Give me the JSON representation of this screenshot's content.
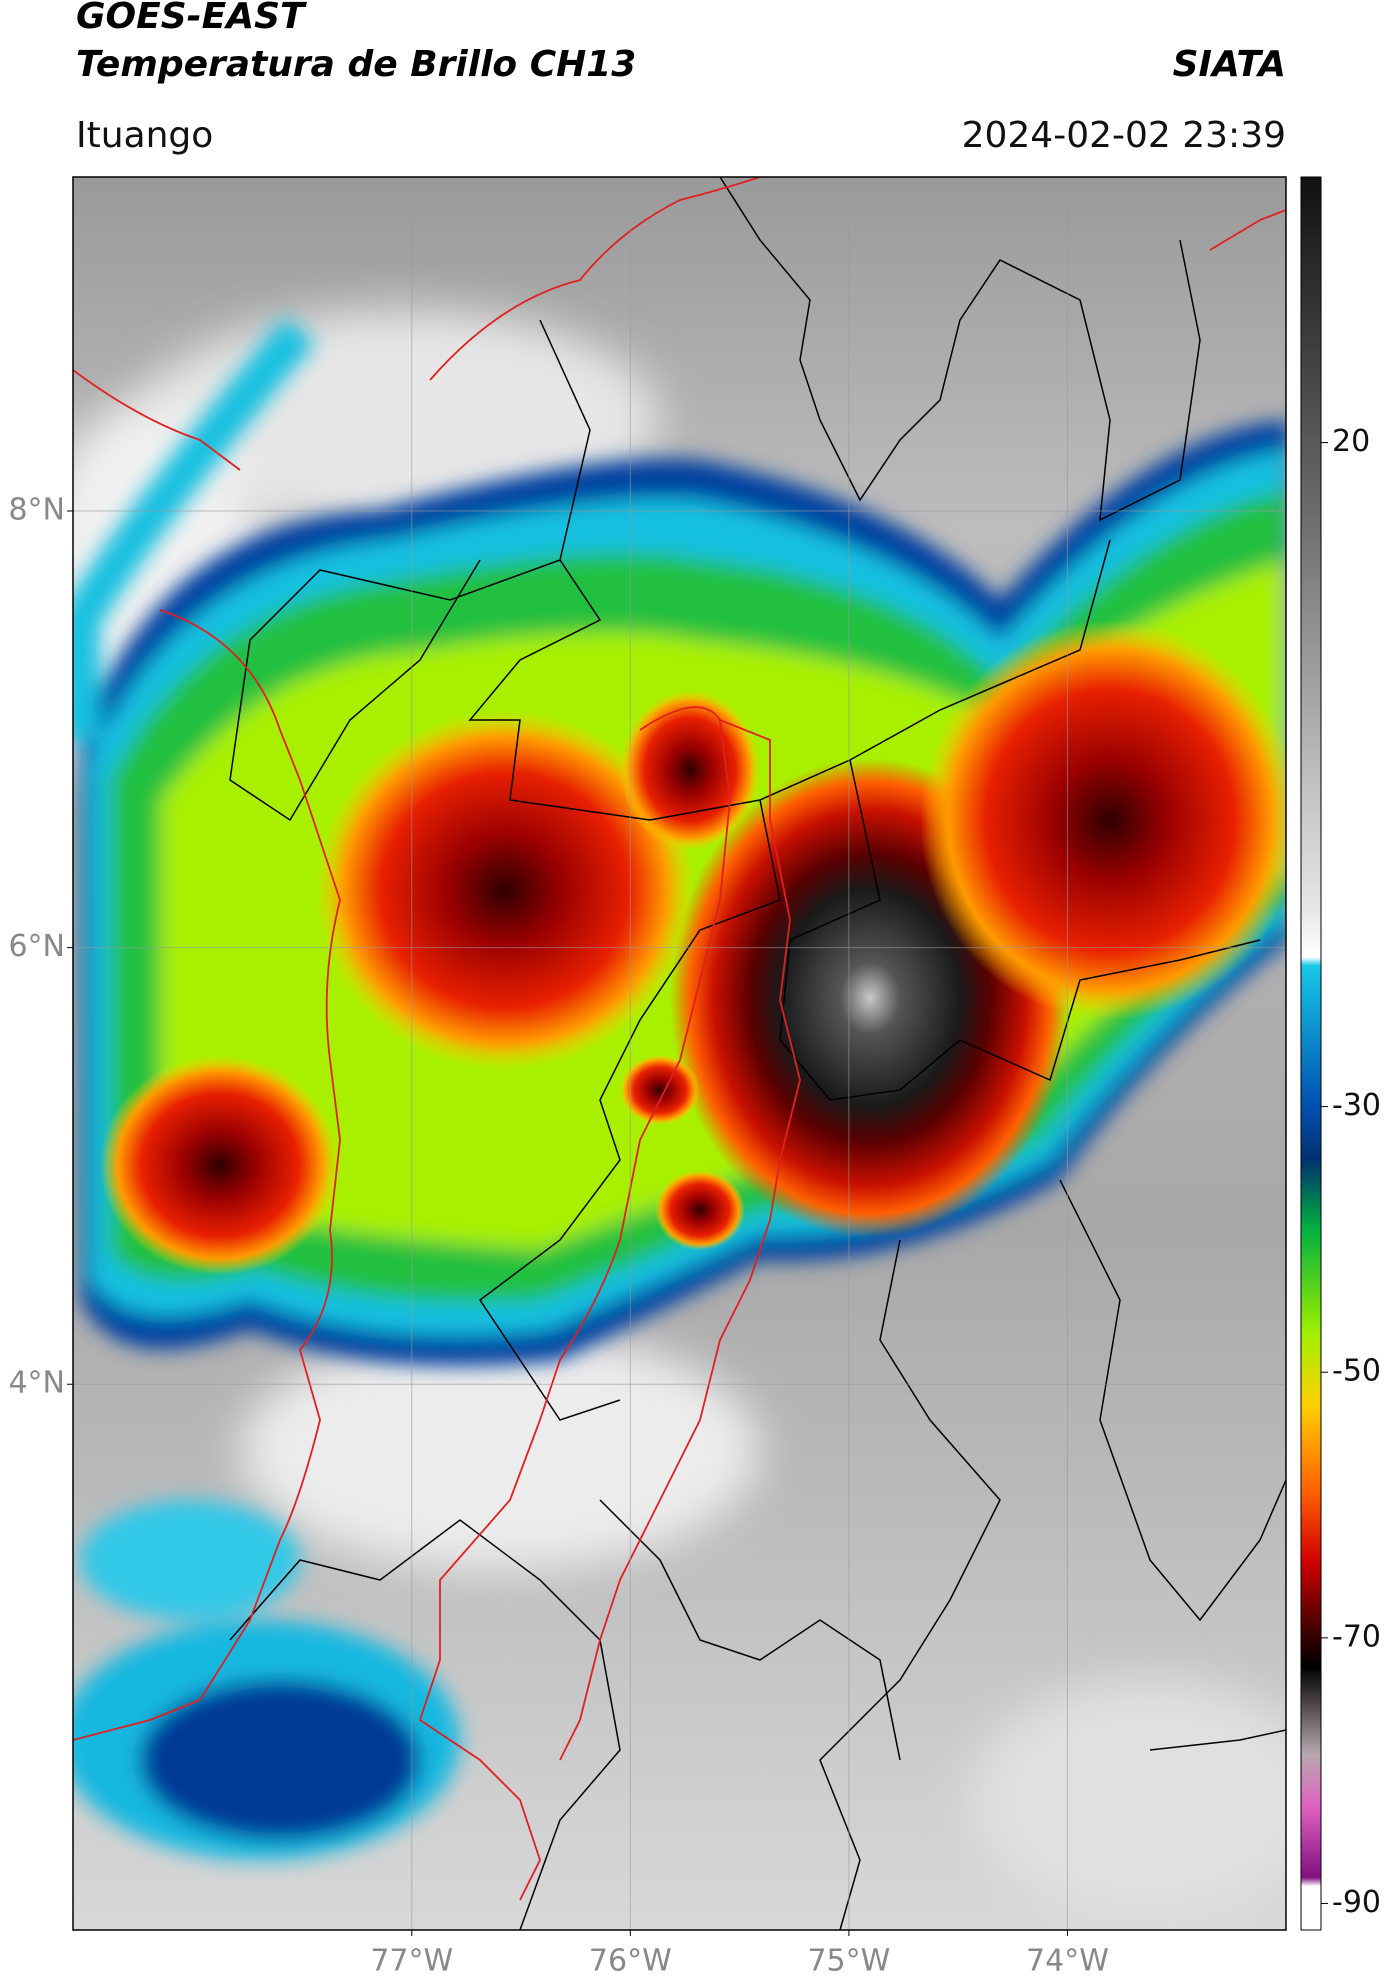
{
  "header": {
    "satellite": "GOES-EAST",
    "product": "Temperatura de Brillo CH13",
    "agency": "SIATA",
    "location": "Ituango",
    "datetime": "2024-02-02 23:39"
  },
  "map": {
    "xlim": [
      -78.55,
      -73.0
    ],
    "ylim": [
      1.5,
      9.53
    ],
    "lat_ticks": [
      {
        "value": 8,
        "label": "8°N"
      },
      {
        "value": 6,
        "label": "6°N"
      },
      {
        "value": 4,
        "label": "4°N"
      }
    ],
    "lon_ticks": [
      {
        "value": -77,
        "label": "77°W"
      },
      {
        "value": -76,
        "label": "76°W"
      },
      {
        "value": -75,
        "label": "75°W"
      },
      {
        "value": -74,
        "label": "74°W"
      }
    ],
    "grid": true
  },
  "colorbar": {
    "lim": [
      -92,
      40
    ],
    "ticks": [
      20,
      -30,
      -50,
      -70,
      -90
    ]
  }
}
